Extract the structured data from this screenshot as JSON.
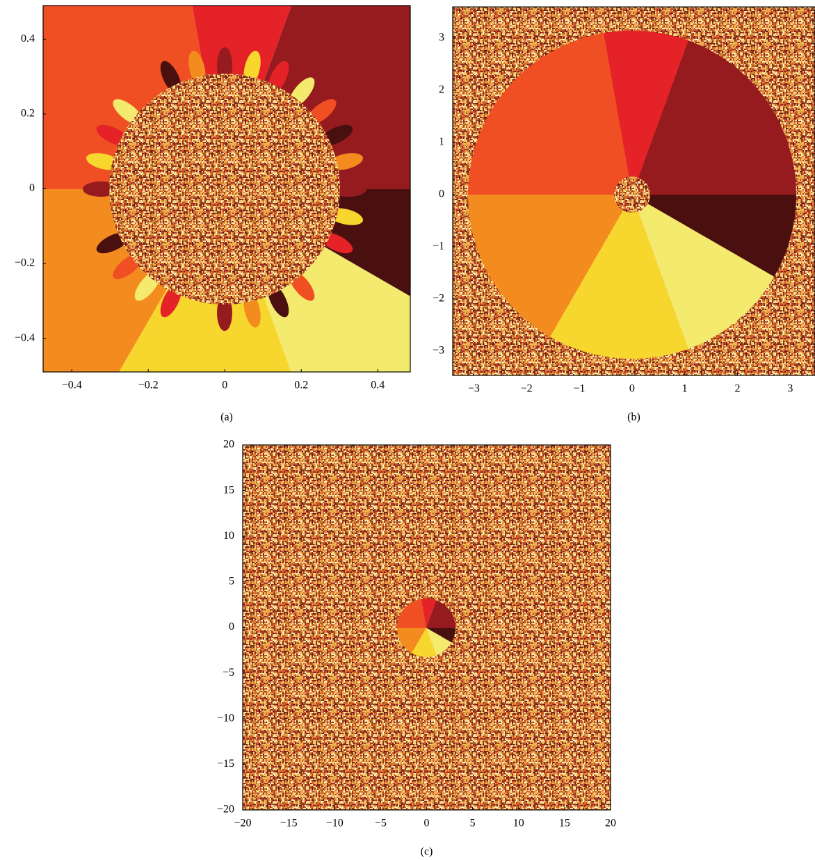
{
  "chart_data": [
    {
      "type": "image",
      "caption": "(a)",
      "xlim": [
        -0.475,
        0.485
      ],
      "ylim": [
        -0.49,
        0.49
      ],
      "xticks": [
        {
          "value": -0.4,
          "label": "−0.4"
        },
        {
          "value": -0.2,
          "label": "−0.2"
        },
        0,
        0.2,
        0.4
      ],
      "yticks": [
        {
          "value": -0.4,
          "label": "−0.4"
        },
        {
          "value": -0.2,
          "label": "−0.2"
        },
        0,
        0.2,
        0.4
      ]
    },
    {
      "type": "image",
      "caption": "(b)",
      "xlim": [
        -3.4,
        3.47
      ],
      "ylim": [
        -3.47,
        3.6
      ],
      "xticks": [
        {
          "value": -3,
          "label": "−3"
        },
        {
          "value": -2,
          "label": "−2"
        },
        {
          "value": -1,
          "label": "−1"
        },
        0,
        1,
        2,
        3
      ],
      "yticks": [
        {
          "value": -3,
          "label": "−3"
        },
        {
          "value": -2,
          "label": "−2"
        },
        {
          "value": -1,
          "label": "−1"
        },
        0,
        1,
        2,
        3
      ]
    },
    {
      "type": "image",
      "caption": "(c)",
      "xlim": [
        -20,
        20
      ],
      "ylim": [
        -20,
        20
      ],
      "xticks": [
        {
          "value": -20,
          "label": "−20"
        },
        {
          "value": -15,
          "label": "−15"
        },
        {
          "value": -10,
          "label": "−10"
        },
        {
          "value": -5,
          "label": "−5"
        },
        0,
        5,
        10,
        15,
        20
      ],
      "yticks": [
        {
          "value": -20,
          "label": "−20"
        },
        {
          "value": -15,
          "label": "−15"
        },
        {
          "value": -10,
          "label": "−10"
        },
        {
          "value": -5,
          "label": "−5"
        },
        0,
        5,
        10,
        15,
        20
      ]
    }
  ]
}
